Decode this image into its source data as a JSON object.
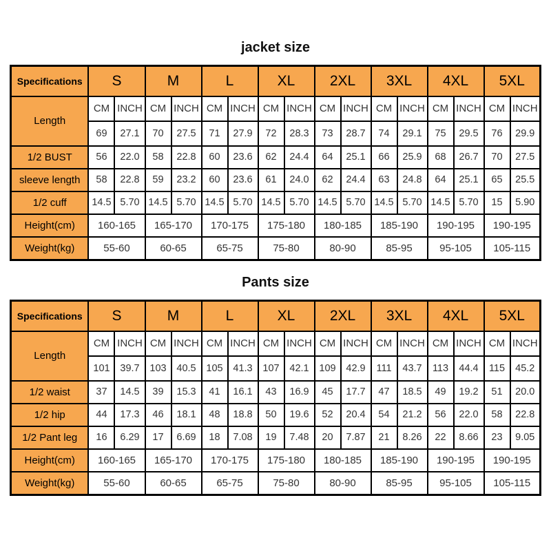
{
  "page": {
    "background": "#ffffff"
  },
  "colors": {
    "header_bg": "#F7A74F",
    "border": "#000000",
    "label_text": "#000000",
    "value_text": "#333333"
  },
  "tables": [
    {
      "title": "jacket size",
      "spec_header": "Specifications",
      "sizes": [
        "S",
        "M",
        "L",
        "XL",
        "2XL",
        "3XL",
        "4XL",
        "5XL"
      ],
      "unit_headers": [
        "CM",
        "INCH"
      ],
      "length_row": {
        "label": "Length",
        "values": [
          [
            "69",
            "27.1"
          ],
          [
            "70",
            "27.5"
          ],
          [
            "71",
            "27.9"
          ],
          [
            "72",
            "28.3"
          ],
          [
            "73",
            "28.7"
          ],
          [
            "74",
            "29.1"
          ],
          [
            "75",
            "29.5"
          ],
          [
            "76",
            "29.9"
          ]
        ]
      },
      "rows": [
        {
          "label": "1/2 BUST",
          "values": [
            [
              "56",
              "22.0"
            ],
            [
              "58",
              "22.8"
            ],
            [
              "60",
              "23.6"
            ],
            [
              "62",
              "24.4"
            ],
            [
              "64",
              "25.1"
            ],
            [
              "66",
              "25.9"
            ],
            [
              "68",
              "26.7"
            ],
            [
              "70",
              "27.5"
            ]
          ]
        },
        {
          "label": "sleeve length",
          "values": [
            [
              "58",
              "22.8"
            ],
            [
              "59",
              "23.2"
            ],
            [
              "60",
              "23.6"
            ],
            [
              "61",
              "24.0"
            ],
            [
              "62",
              "24.4"
            ],
            [
              "63",
              "24.8"
            ],
            [
              "64",
              "25.1"
            ],
            [
              "65",
              "25.5"
            ]
          ]
        },
        {
          "label": "1/2 cuff",
          "values": [
            [
              "14.5",
              "5.70"
            ],
            [
              "14.5",
              "5.70"
            ],
            [
              "14.5",
              "5.70"
            ],
            [
              "14.5",
              "5.70"
            ],
            [
              "14.5",
              "5.70"
            ],
            [
              "14.5",
              "5.70"
            ],
            [
              "14.5",
              "5.70"
            ],
            [
              "15",
              "5.90"
            ]
          ]
        }
      ],
      "span_rows": [
        {
          "label": "Height(cm)",
          "values": [
            "160-165",
            "165-170",
            "170-175",
            "175-180",
            "180-185",
            "185-190",
            "190-195",
            "190-195"
          ]
        },
        {
          "label": "Weight(kg)",
          "values": [
            "55-60",
            "60-65",
            "65-75",
            "75-80",
            "80-90",
            "85-95",
            "95-105",
            "105-115"
          ]
        }
      ]
    },
    {
      "title": "Pants size",
      "spec_header": "Specifications",
      "sizes": [
        "S",
        "M",
        "L",
        "XL",
        "2XL",
        "3XL",
        "4XL",
        "5XL"
      ],
      "unit_headers": [
        "CM",
        "INCH"
      ],
      "length_row": {
        "label": "Length",
        "values": [
          [
            "101",
            "39.7"
          ],
          [
            "103",
            "40.5"
          ],
          [
            "105",
            "41.3"
          ],
          [
            "107",
            "42.1"
          ],
          [
            "109",
            "42.9"
          ],
          [
            "111",
            "43.7"
          ],
          [
            "113",
            "44.4"
          ],
          [
            "115",
            "45.2"
          ]
        ]
      },
      "rows": [
        {
          "label": "1/2 waist",
          "values": [
            [
              "37",
              "14.5"
            ],
            [
              "39",
              "15.3"
            ],
            [
              "41",
              "16.1"
            ],
            [
              "43",
              "16.9"
            ],
            [
              "45",
              "17.7"
            ],
            [
              "47",
              "18.5"
            ],
            [
              "49",
              "19.2"
            ],
            [
              "51",
              "20.0"
            ]
          ]
        },
        {
          "label": "1/2 hip",
          "values": [
            [
              "44",
              "17.3"
            ],
            [
              "46",
              "18.1"
            ],
            [
              "48",
              "18.8"
            ],
            [
              "50",
              "19.6"
            ],
            [
              "52",
              "20.4"
            ],
            [
              "54",
              "21.2"
            ],
            [
              "56",
              "22.0"
            ],
            [
              "58",
              "22.8"
            ]
          ]
        },
        {
          "label": "1/2 Pant leg",
          "values": [
            [
              "16",
              "6.29"
            ],
            [
              "17",
              "6.69"
            ],
            [
              "18",
              "7.08"
            ],
            [
              "19",
              "7.48"
            ],
            [
              "20",
              "7.87"
            ],
            [
              "21",
              "8.26"
            ],
            [
              "22",
              "8.66"
            ],
            [
              "23",
              "9.05"
            ]
          ]
        }
      ],
      "span_rows": [
        {
          "label": "Height(cm)",
          "values": [
            "160-165",
            "165-170",
            "170-175",
            "175-180",
            "180-185",
            "185-190",
            "190-195",
            "190-195"
          ]
        },
        {
          "label": "Weight(kg)",
          "values": [
            "55-60",
            "60-65",
            "65-75",
            "75-80",
            "80-90",
            "85-95",
            "95-105",
            "105-115"
          ]
        }
      ]
    }
  ]
}
